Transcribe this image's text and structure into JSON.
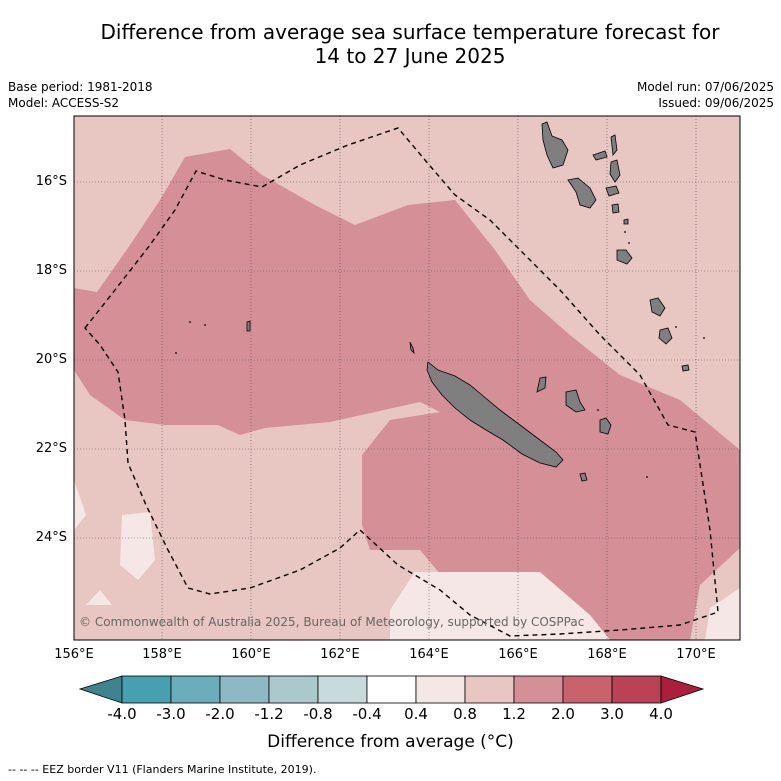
{
  "title_line1": "Difference from average sea surface temperature forecast for",
  "title_line2": "14 to 27 June 2025",
  "meta": {
    "base_period": "Base period: 1981-2018",
    "model": "Model: ACCESS-S2",
    "model_run": "Model run: 07/06/2025",
    "issued": "Issued: 09/06/2025"
  },
  "credit": "© Commonwealth of Australia 2025, Bureau of Meteorology, supported by COSPPac",
  "lat_labels": [
    "16°S",
    "18°S",
    "20°S",
    "22°S",
    "24°S"
  ],
  "lon_labels": [
    "156°E",
    "158°E",
    "160°E",
    "162°E",
    "164°E",
    "166°E",
    "168°E",
    "170°E"
  ],
  "colorbar": {
    "ticks": [
      "-4.0",
      "-3.0",
      "-2.0",
      "-1.2",
      "-0.8",
      "-0.4",
      "0.4",
      "0.8",
      "1.2",
      "2.0",
      "3.0",
      "4.0"
    ],
    "colors": [
      "#47a0b0",
      "#6aadbb",
      "#8cb9c4",
      "#a9c9cd",
      "#c8dadb",
      "#ffffff",
      "#f5e7e5",
      "#e8c6c2",
      "#d59097",
      "#c8636e",
      "#bb4156"
    ],
    "under_color": "#3d8490",
    "over_color": "#ab1f3c",
    "label": "Difference from average (°C)"
  },
  "legend_footnote": "--  --  -- EEZ border V11 (Flanders Marine Institute, 2019)."
}
